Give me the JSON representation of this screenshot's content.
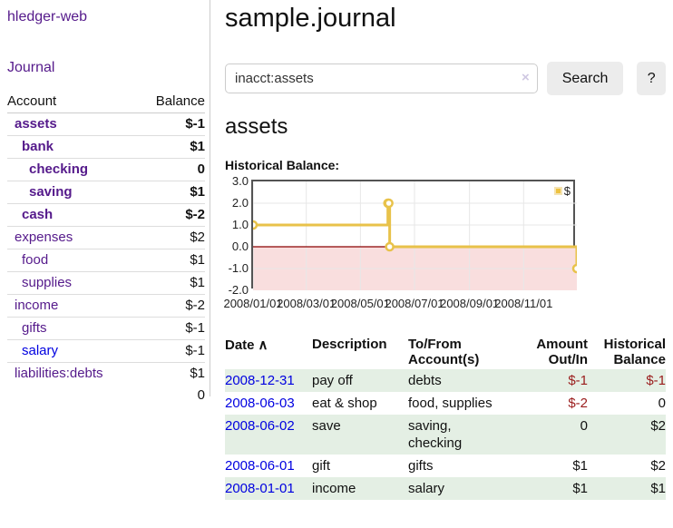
{
  "app": {
    "brand": "hledger-web",
    "nav_journal": "Journal"
  },
  "sidebar": {
    "headers": {
      "account": "Account",
      "balance": "Balance"
    },
    "accounts": [
      {
        "name": "assets",
        "depth": 0,
        "bold": true,
        "balance": "$-1",
        "balance_style": "neg-strong"
      },
      {
        "name": "bank",
        "depth": 1,
        "bold": true,
        "balance": "$1",
        "balance_style": "pos"
      },
      {
        "name": "checking",
        "depth": 2,
        "bold": true,
        "balance": "0",
        "balance_style": "pos"
      },
      {
        "name": "saving",
        "depth": 2,
        "bold": true,
        "balance": "$1",
        "balance_style": "pos"
      },
      {
        "name": "cash",
        "depth": 1,
        "bold": true,
        "balance": "$-2",
        "balance_style": "neg-strong"
      },
      {
        "name": "expenses",
        "depth": 0,
        "bold": false,
        "balance": "$2",
        "balance_style": "pos"
      },
      {
        "name": "food",
        "depth": 1,
        "bold": false,
        "balance": "$1",
        "balance_style": "pos"
      },
      {
        "name": "supplies",
        "depth": 1,
        "bold": false,
        "balance": "$1",
        "balance_style": "pos"
      },
      {
        "name": "income",
        "depth": 0,
        "bold": false,
        "balance": "$-2",
        "balance_style": "neg-soft"
      },
      {
        "name": "gifts",
        "depth": 1,
        "bold": false,
        "balance": "$-1",
        "balance_style": "neg-soft"
      },
      {
        "name": "salary",
        "depth": 1,
        "bold": false,
        "link_color": "blue",
        "balance": "$-1",
        "balance_style": "neg-soft"
      },
      {
        "name": "liabilities:debts",
        "depth": 0,
        "bold": false,
        "balance": "$1",
        "balance_style": "pos"
      }
    ],
    "total": "0"
  },
  "header": {
    "title": "sample.journal"
  },
  "search": {
    "value": "inacct:assets",
    "clear_icon": "×",
    "button_label": "Search",
    "help_label": "?"
  },
  "account_page": {
    "heading": "assets",
    "chart_label": "Historical Balance:"
  },
  "chart_data": {
    "type": "line",
    "title": "Historical Balance",
    "series": [
      {
        "name": "$",
        "color": "#e8c24a",
        "step": true,
        "points": [
          [
            "2008/01/01",
            1
          ],
          [
            "2008/06/01",
            2
          ],
          [
            "2008/06/02",
            2
          ],
          [
            "2008/06/03",
            0
          ],
          [
            "2008/12/31",
            -1
          ]
        ]
      }
    ],
    "xlim": [
      "2008/01/01",
      "2008/12/31"
    ],
    "ylim": [
      -2,
      3
    ],
    "yticks": [
      3,
      2,
      1,
      0,
      -1,
      -2
    ],
    "ytick_labels": [
      "3.0",
      "2.0",
      "1.0",
      "0.0",
      "-1.0",
      "-2.0"
    ],
    "xticks": [
      "2008/01/01",
      "2008/03/01",
      "2008/05/01",
      "2008/07/01",
      "2008/09/01",
      "2008/11/01"
    ],
    "xtick_labels": [
      "2008/01/01",
      "2008/03/01",
      "2008/05/01",
      "2008/07/01",
      "2008/09/01",
      "2008/11/01"
    ],
    "grid": true,
    "legend": {
      "label": "$",
      "position": "top-right"
    },
    "gridline_color": "#e7e7e7",
    "zero_line_color": "#8b0000",
    "negative_region_color": "#f9dede"
  },
  "register": {
    "headers": {
      "date": "Date",
      "sort_icon": "∧",
      "description": "Description",
      "accounts": "To/From Account(s)",
      "amount": "Amount Out/In",
      "balance": "Historical Balance"
    },
    "rows": [
      {
        "date": "2008-12-31",
        "description": "pay off",
        "accounts": "debts",
        "amount": "$-1",
        "amount_negative": true,
        "balance": "$-1",
        "balance_negative": true
      },
      {
        "date": "2008-06-03",
        "description": "eat & shop",
        "accounts": "food, supplies",
        "amount": "$-2",
        "amount_negative": true,
        "balance": "0",
        "balance_negative": false
      },
      {
        "date": "2008-06-02",
        "description": "save",
        "accounts": "saving, checking",
        "amount": "0",
        "amount_negative": false,
        "balance": "$2",
        "balance_negative": false
      },
      {
        "date": "2008-06-01",
        "description": "gift",
        "accounts": "gifts",
        "amount": "$1",
        "amount_negative": false,
        "balance": "$2",
        "balance_negative": false
      },
      {
        "date": "2008-01-01",
        "description": "income",
        "accounts": "salary",
        "amount": "$1",
        "amount_negative": false,
        "balance": "$1",
        "balance_negative": false
      }
    ]
  }
}
